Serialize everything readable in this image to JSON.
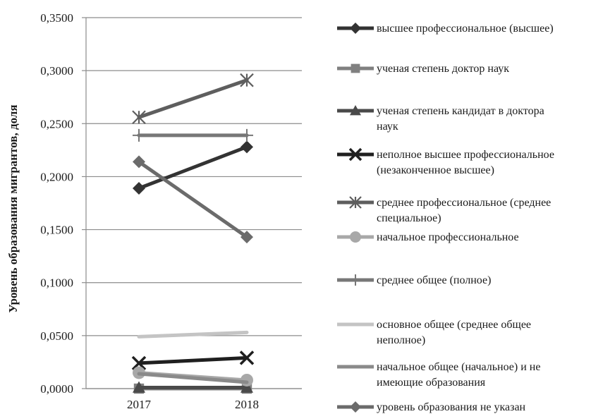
{
  "chart_data": {
    "type": "line",
    "title": "",
    "xlabel": "",
    "ylabel": "Уровень образования мигрантов, доля",
    "categories": [
      "2017",
      "2018"
    ],
    "ylim": [
      0,
      0.35
    ],
    "yticks": [
      "0,0000",
      "0,0500",
      "0,1000",
      "0,1500",
      "0,2000",
      "0,2500",
      "0,3000",
      "0,3500"
    ],
    "grid": "horizontal",
    "legend_position": "right",
    "series": [
      {
        "name": "высшее профессиональное (высшее)",
        "lines": [
          "высшее профессиональное (высшее)"
        ],
        "values": [
          0.189,
          0.228
        ],
        "color": "#333333",
        "marker": "diamond"
      },
      {
        "name": "ученая степень доктор наук",
        "lines": [
          "ученая степень доктор наук"
        ],
        "values": [
          0.0,
          0.0
        ],
        "color": "#808080",
        "marker": "square"
      },
      {
        "name": "ученая степень кандидат в доктора наук",
        "lines": [
          "ученая степень кандидат в доктора",
          "наук"
        ],
        "values": [
          0.001,
          0.001
        ],
        "color": "#4a4a4a",
        "marker": "triangle"
      },
      {
        "name": "неполное высшее профессиональное (незаконченное высшее)",
        "lines": [
          "неполное высшее профессиональное",
          "(незаконченное высшее)"
        ],
        "values": [
          0.024,
          0.029
        ],
        "color": "#1f1f1f",
        "marker": "x"
      },
      {
        "name": "среднее профессиональное (среднее специальное)",
        "lines": [
          "среднее  профессиональное (среднее",
          "специальное)"
        ],
        "values": [
          0.256,
          0.291
        ],
        "color": "#5e5e5e",
        "marker": "star"
      },
      {
        "name": "начальное профессиональное",
        "lines": [
          "начальное профессиональное"
        ],
        "values": [
          0.015,
          0.008
        ],
        "color": "#a8a8a8",
        "marker": "circle"
      },
      {
        "name": "среднее общее (полное)",
        "lines": [
          "среднее общее (полное)"
        ],
        "values": [
          0.239,
          0.239
        ],
        "color": "#777777",
        "marker": "plus"
      },
      {
        "name": "основное общее (среднее общее неполное)",
        "lines": [
          "основное общее (среднее общее",
          "неполное)"
        ],
        "values": [
          0.049,
          0.053
        ],
        "color": "#c4c4c4",
        "marker": "none"
      },
      {
        "name": "начальное общее (начальное) и не имеющие образования",
        "lines": [
          "начальное общее (начальное) и не",
          "имеющие образования"
        ],
        "values": [
          0.014,
          0.006
        ],
        "color": "#8a8a8a",
        "marker": "none"
      },
      {
        "name": "уровень образования не указан",
        "lines": [
          "уровень образования  не указан"
        ],
        "values": [
          0.214,
          0.143
        ],
        "color": "#6b6b6b",
        "marker": "diamond"
      }
    ]
  }
}
